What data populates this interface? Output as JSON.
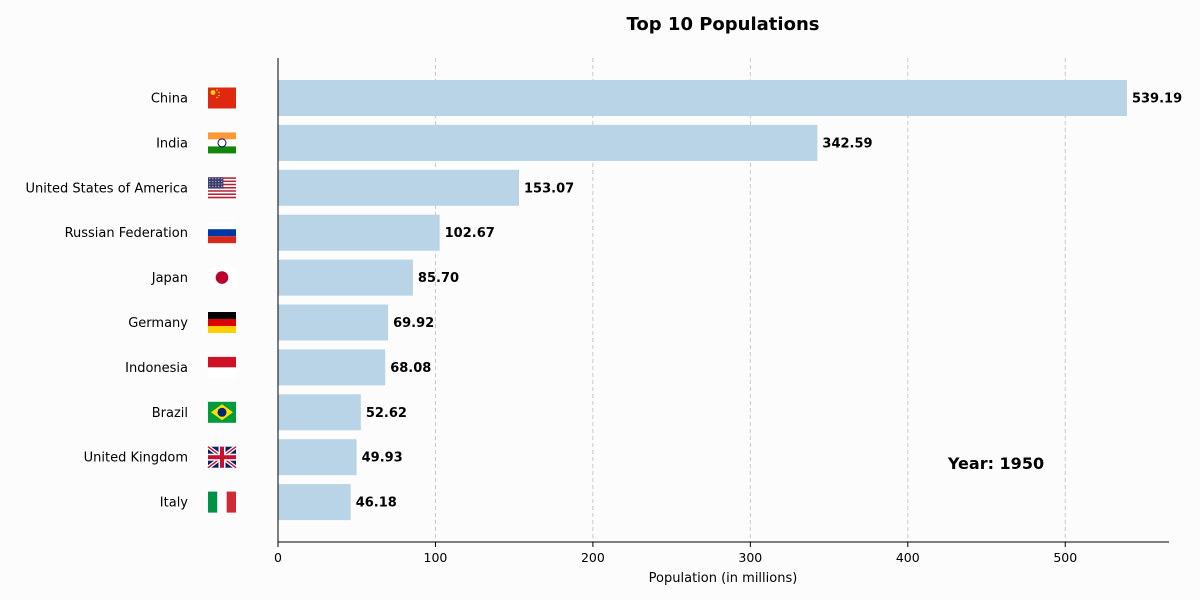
{
  "chart_data": {
    "type": "bar",
    "orientation": "horizontal",
    "title": "Top 10 Populations",
    "xlabel": "Population (in millions)",
    "ylabel": "",
    "xlim": [
      0,
      566
    ],
    "xticks": [
      0,
      100,
      200,
      300,
      400,
      500
    ],
    "grid": "vertical dashed",
    "bar_color": "#b8d4e6",
    "categories": [
      "China",
      "India",
      "United States of America",
      "Russian Federation",
      "Japan",
      "Germany",
      "Indonesia",
      "Brazil",
      "United Kingdom",
      "Italy"
    ],
    "values": [
      539.19,
      342.59,
      153.07,
      102.67,
      85.7,
      69.92,
      68.08,
      52.62,
      49.93,
      46.18
    ],
    "value_labels": [
      "539.19",
      "342.59",
      "153.07",
      "102.67",
      "85.70",
      "69.92",
      "68.08",
      "52.62",
      "49.93",
      "46.18"
    ],
    "flags": [
      "china-flag",
      "india-flag",
      "usa-flag",
      "russia-flag",
      "japan-flag",
      "germany-flag",
      "indonesia-flag",
      "brazil-flag",
      "uk-flag",
      "italy-flag"
    ],
    "annotation": "Year: 1950"
  }
}
